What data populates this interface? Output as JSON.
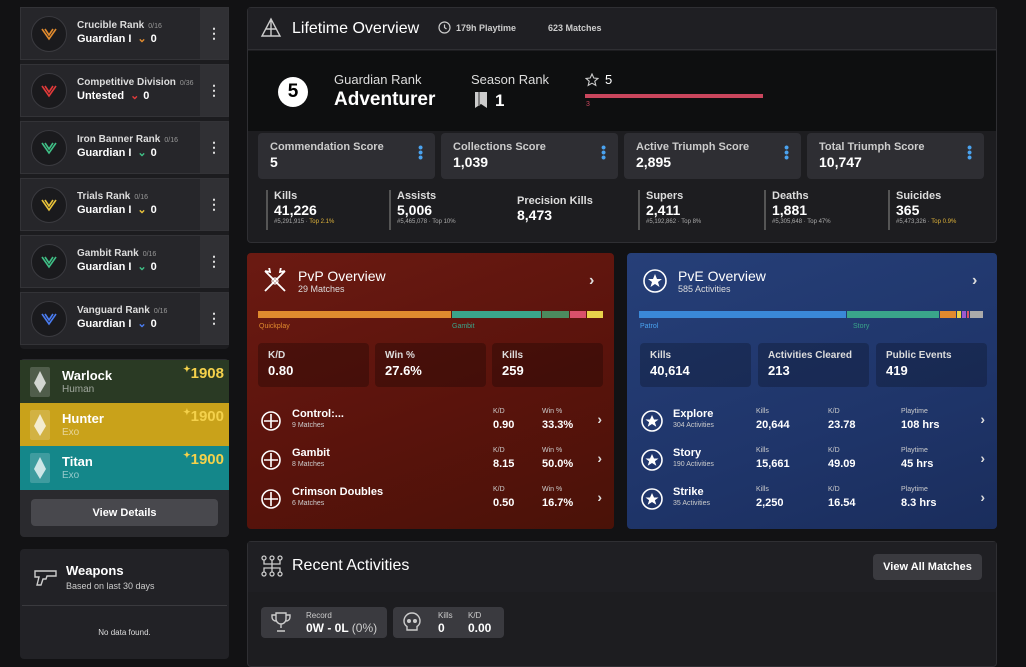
{
  "sidebar": {
    "ranks": [
      {
        "title": "Crucible Rank",
        "progress": "0/16",
        "sub": "Guardian I",
        "points": "0",
        "color": "#e08a2e",
        "icon": "crucible-rank-icon"
      },
      {
        "title": "Competitive Division",
        "progress": "0/36",
        "sub": "Untested",
        "points": "0",
        "color": "#e23a3a",
        "icon": "competitive-rank-icon"
      },
      {
        "title": "Iron Banner Rank",
        "progress": "0/16",
        "sub": "Guardian I",
        "points": "0",
        "color": "#3fbf86",
        "icon": "iron-banner-rank-icon"
      },
      {
        "title": "Trials Rank",
        "progress": "0/16",
        "sub": "Guardian I",
        "points": "0",
        "color": "#e8c23b",
        "icon": "trials-rank-icon"
      },
      {
        "title": "Gambit Rank",
        "progress": "0/16",
        "sub": "Guardian I",
        "points": "0",
        "color": "#3fbf86",
        "icon": "gambit-rank-icon"
      },
      {
        "title": "Vanguard Rank",
        "progress": "0/16",
        "sub": "Guardian I",
        "points": "0",
        "color": "#4a7cf0",
        "icon": "vanguard-rank-icon"
      }
    ],
    "characters": [
      {
        "class": "Warlock",
        "race": "Human",
        "power": "1908",
        "bg": "#2a3a24"
      },
      {
        "class": "Hunter",
        "race": "Exo",
        "power": "1900",
        "bg": "#c9a21a"
      },
      {
        "class": "Titan",
        "race": "Exo",
        "power": "1900",
        "bg": "#14878a"
      }
    ],
    "view_details": "View Details",
    "weapons": {
      "title": "Weapons",
      "subtitle": "Based on last 30 days",
      "empty": "No data found."
    }
  },
  "lifetime": {
    "title": "Lifetime Overview",
    "playtime": "179h Playtime",
    "matches": "623 Matches",
    "guardian_rank_number": "5",
    "guardian_rank_label": "Guardian Rank",
    "guardian_rank_value": "Adventurer",
    "season_rank_label": "Season Rank",
    "season_rank_value": "1",
    "star_value": "5",
    "star_small": "3",
    "scores": [
      {
        "label": "Commendation Score",
        "value": "5"
      },
      {
        "label": "Collections Score",
        "value": "1,039"
      },
      {
        "label": "Active Triumph Score",
        "value": "2,895"
      },
      {
        "label": "Total Triumph Score",
        "value": "10,747"
      }
    ],
    "stats": [
      {
        "label": "Kills",
        "value": "41,226",
        "rank": "#5,291,915 · ",
        "top": "Top 2.1%"
      },
      {
        "label": "Assists",
        "value": "5,006",
        "rank": "#5,465,078 · Top 10%",
        "top": ""
      },
      {
        "label": "Precision Kills",
        "value": "8,473",
        "rank": "",
        "top": ""
      },
      {
        "label": "Supers",
        "value": "2,411",
        "rank": "#5,192,862 · Top 8%",
        "top": ""
      },
      {
        "label": "Deaths",
        "value": "1,881",
        "rank": "#5,305,648 · Top 47%",
        "top": ""
      },
      {
        "label": "Suicides",
        "value": "365",
        "rank": "#5,473,326 · ",
        "top": "Top 0.9%"
      }
    ]
  },
  "pvp": {
    "title": "PvP Overview",
    "subtitle": "29 Matches",
    "bar_labels": [
      "Quickplay",
      "Gambit"
    ],
    "segments": [
      {
        "color": "#e08a2e",
        "share": 0.56
      },
      {
        "color": "#3aa58a",
        "share": 0.26
      },
      {
        "color": "#4c8a5e",
        "share": 0.08
      },
      {
        "color": "#d9506a",
        "share": 0.05
      },
      {
        "color": "#e8d24a",
        "share": 0.05
      }
    ],
    "stats": [
      {
        "label": "K/D",
        "value": "0.80"
      },
      {
        "label": "Win %",
        "value": "27.6%"
      },
      {
        "label": "Kills",
        "value": "259"
      }
    ],
    "col_labels": [
      "K/D",
      "Win %"
    ],
    "modes": [
      {
        "name": "Control:...",
        "sub": "9 Matches",
        "kd": "0.90",
        "win": "33.3%",
        "icon": "control-icon"
      },
      {
        "name": "Gambit",
        "sub": "8 Matches",
        "kd": "8.15",
        "win": "50.0%",
        "icon": "gambit-icon"
      },
      {
        "name": "Crimson Doubles",
        "sub": "6 Matches",
        "kd": "0.50",
        "win": "16.7%",
        "icon": "crimson-doubles-icon"
      }
    ]
  },
  "pve": {
    "title": "PvE Overview",
    "subtitle": "585 Activities",
    "bar_labels": [
      "Patrol",
      "Story"
    ],
    "segments": [
      {
        "color": "#3a88d8",
        "share": 0.6
      },
      {
        "color": "#3aa58a",
        "share": 0.27
      },
      {
        "color": "#e08a2e",
        "share": 0.05
      },
      {
        "color": "#e8d24a",
        "share": 0.015
      },
      {
        "color": "#9b59d0",
        "share": 0.015
      },
      {
        "color": "#d9506a",
        "share": 0.01
      },
      {
        "color": "#aaaaaa",
        "share": 0.04
      }
    ],
    "stats": [
      {
        "label": "Kills",
        "value": "40,614"
      },
      {
        "label": "Activities Cleared",
        "value": "213"
      },
      {
        "label": "Public Events",
        "value": "419"
      }
    ],
    "col_labels": [
      "Kills",
      "K/D",
      "Playtime"
    ],
    "modes": [
      {
        "name": "Explore",
        "sub": "304 Activities",
        "kills": "20,644",
        "kd": "23.78",
        "time": "108 hrs",
        "icon": "explore-icon"
      },
      {
        "name": "Story",
        "sub": "190 Activities",
        "kills": "15,661",
        "kd": "49.09",
        "time": "45 hrs",
        "icon": "story-icon"
      },
      {
        "name": "Strike",
        "sub": "35 Activities",
        "kills": "2,250",
        "kd": "16.54",
        "time": "8.3 hrs",
        "icon": "strike-icon"
      }
    ]
  },
  "recent": {
    "title": "Recent Activities",
    "view_all": "View All Matches",
    "record_label": "Record",
    "record_value": "0W - 0L",
    "record_pct": "(0%)",
    "kills_label": "Kills",
    "kills_value": "0",
    "kd_label": "K/D",
    "kd_value": "0.00"
  }
}
